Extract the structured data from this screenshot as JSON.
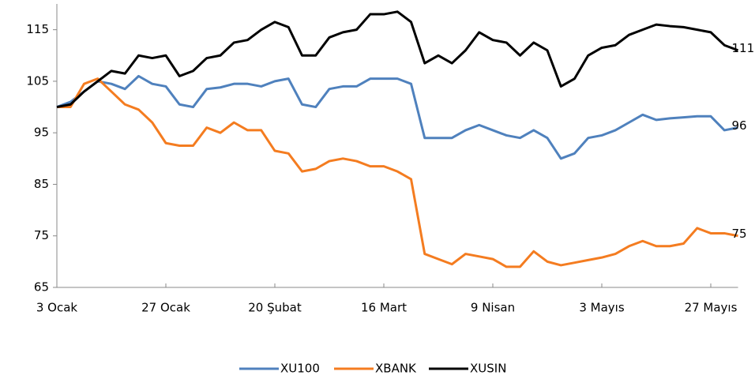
{
  "chart_data": {
    "type": "line",
    "categories": [
      "3 Ocak",
      null,
      null,
      null,
      null,
      null,
      null,
      null,
      "27 Ocak",
      null,
      null,
      null,
      null,
      null,
      null,
      null,
      "20 Şubat",
      null,
      null,
      null,
      null,
      null,
      null,
      null,
      "16 Mart",
      null,
      null,
      null,
      null,
      null,
      null,
      null,
      "9 Nisan",
      null,
      null,
      null,
      null,
      null,
      null,
      null,
      "3 Mayıs",
      null,
      null,
      null,
      null,
      null,
      null,
      null,
      "27 Mayıs",
      null,
      null
    ],
    "series": [
      {
        "name": "XU100",
        "color": "#4f81bd",
        "values": [
          100,
          101,
          103,
          105,
          104.5,
          103.5,
          106,
          104.5,
          104,
          100.5,
          100,
          103.5,
          103.8,
          104.5,
          104.5,
          104,
          105,
          105.5,
          100.5,
          100,
          103.5,
          104,
          104,
          105.5,
          105.5,
          105.5,
          104.5,
          94,
          94,
          94,
          95.5,
          96.5,
          95.5,
          94.5,
          94,
          95.5,
          94,
          90,
          91,
          94,
          94.5,
          95.5,
          97,
          98.5,
          97.5,
          97.8,
          98,
          98.2,
          98.2,
          95.5,
          96
        ]
      },
      {
        "name": "XBANK",
        "color": "#f47c20",
        "values": [
          100,
          100,
          104.5,
          105.5,
          103,
          100.5,
          99.5,
          97,
          93,
          92.5,
          92.5,
          96,
          95,
          97,
          95.5,
          95.5,
          91.5,
          91,
          87.5,
          88,
          89.5,
          90,
          89.5,
          88.5,
          88.5,
          87.5,
          86,
          71.5,
          70.5,
          69.5,
          71.5,
          71,
          70.5,
          69,
          69,
          72,
          70,
          69.3,
          69.8,
          70.3,
          70.8,
          71.5,
          73,
          74,
          73,
          73,
          73.5,
          76.5,
          75.5,
          75.5,
          75
        ]
      },
      {
        "name": "XUSIN",
        "color": "#000000",
        "values": [
          100,
          100.5,
          103,
          105,
          107,
          106.5,
          110,
          109.5,
          110,
          106,
          107,
          109.5,
          110,
          112.5,
          113,
          115,
          116.5,
          115.5,
          110,
          110,
          113.5,
          114.5,
          115,
          118,
          118,
          118.5,
          116.5,
          108.5,
          110,
          108.5,
          111,
          114.5,
          113,
          112.5,
          110,
          112.5,
          111,
          104,
          105.5,
          110,
          111.5,
          112,
          114,
          115,
          116,
          115.7,
          115.5,
          115,
          114.5,
          112,
          111
        ]
      }
    ],
    "ylim": [
      65,
      120
    ],
    "yticks": [
      65,
      75,
      85,
      95,
      105,
      115
    ],
    "legend": "bottom"
  }
}
